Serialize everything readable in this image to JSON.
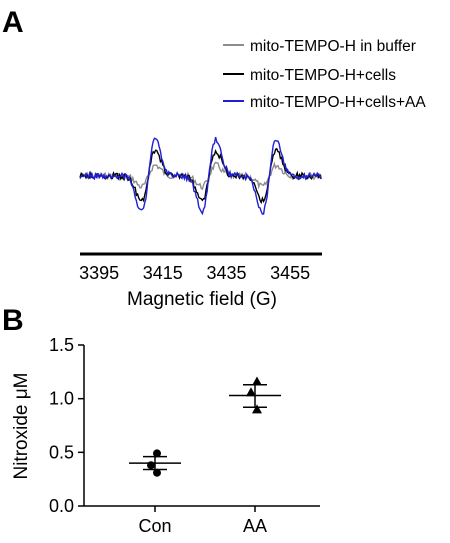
{
  "panel_a": {
    "letter": "A",
    "legend": [
      {
        "label": "mito-TEMPO-H in buffer",
        "color": "#8c8c8c"
      },
      {
        "label": "mito-TEMPO-H+cells",
        "color": "#000000"
      },
      {
        "label": "mito-TEMPO-H+cells+AA",
        "color": "#1f1fd6"
      }
    ]
  },
  "panel_b": {
    "letter": "B"
  },
  "chart_data": [
    {
      "type": "line",
      "xlabel": "Magnetic field (G)",
      "ylabel": "",
      "xlim": [
        3389,
        3465
      ],
      "x_ticks": [
        "3395",
        "3415",
        "3435",
        "3455"
      ],
      "x_tick_values": [
        3395,
        3415,
        3435,
        3455
      ],
      "line_centers": [
        3410.5,
        3429.5,
        3448.5
      ],
      "series": [
        {
          "name": "mito-TEMPO-H in buffer",
          "color": "#8c8c8c",
          "relative_amplitude": 0.3
        },
        {
          "name": "mito-TEMPO-H+cells",
          "color": "#000000",
          "relative_amplitude": 0.7
        },
        {
          "name": "mito-TEMPO-H+cells+AA",
          "color": "#1f1fd6",
          "relative_amplitude": 1.0
        }
      ]
    },
    {
      "type": "scatter",
      "xlabel": "",
      "ylabel": "Nitroxide μM",
      "categories": [
        "Con",
        "AA"
      ],
      "ylim": [
        0.0,
        1.5
      ],
      "y_ticks": [
        "0.0",
        "0.5",
        "1.0",
        "1.5"
      ],
      "y_tick_values": [
        0.0,
        0.5,
        1.0,
        1.5
      ],
      "groups": [
        {
          "category": "Con",
          "marker": "circle",
          "points": [
            0.31,
            0.38,
            0.49
          ],
          "mean": 0.4,
          "sem_low": 0.34,
          "sem_high": 0.46
        },
        {
          "category": "AA",
          "marker": "triangle",
          "points": [
            0.9,
            1.06,
            1.16
          ],
          "mean": 1.03,
          "sem_low": 0.92,
          "sem_high": 1.13
        }
      ]
    }
  ]
}
